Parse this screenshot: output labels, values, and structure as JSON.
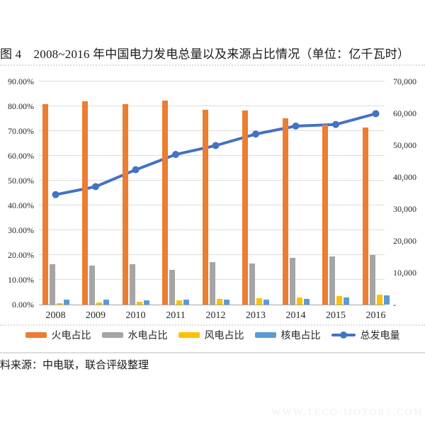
{
  "page": {
    "title": "图 4　2008~2016 年中国电力发电总量以及来源占比情况（单位：亿千瓦时）",
    "source_note": "料来源：中电联，联合评级整理",
    "watermark": "WWW.TECO-MOTORS.COM"
  },
  "chart_data": {
    "type": "bar",
    "subtype": "combo-bar-line",
    "title": "2008~2016 年中国电力发电总量以及来源占比情况（单位：亿千瓦时）",
    "categories": [
      "2008",
      "2009",
      "2010",
      "2011",
      "2012",
      "2013",
      "2014",
      "2015",
      "2016"
    ],
    "series": [
      {
        "key": "thermal",
        "name": "火电占比",
        "kind": "bar",
        "axis": "left",
        "color": "#ED7D31",
        "values": [
          81.0,
          81.9,
          80.8,
          82.4,
          78.7,
          78.4,
          75.2,
          72.5,
          71.3
        ]
      },
      {
        "key": "hydro",
        "name": "水电占比",
        "kind": "bar",
        "axis": "left",
        "color": "#A5A5A5",
        "values": [
          16.3,
          15.6,
          16.2,
          14.0,
          17.1,
          16.5,
          18.8,
          19.4,
          19.9
        ]
      },
      {
        "key": "wind",
        "name": "风电占比",
        "kind": "bar",
        "axis": "left",
        "color": "#FFC000",
        "values": [
          0.5,
          0.9,
          1.2,
          1.7,
          2.2,
          2.6,
          2.8,
          3.3,
          4.0
        ]
      },
      {
        "key": "nuclear",
        "name": "核电占比",
        "kind": "bar",
        "axis": "left",
        "color": "#5B9BD5",
        "values": [
          2.0,
          1.9,
          1.8,
          1.9,
          2.1,
          2.1,
          2.2,
          3.0,
          3.6
        ]
      },
      {
        "key": "total-generation",
        "name": "总发电量",
        "kind": "line",
        "axis": "right",
        "color": "#4472C4",
        "values": [
          34500,
          37000,
          42300,
          47100,
          49900,
          53500,
          56000,
          56500,
          59900
        ]
      }
    ],
    "left_axis": {
      "min": 0,
      "max": 90,
      "step": 10,
      "unit": "%",
      "labels": [
        "0.00%",
        "10.00%",
        "20.00%",
        "30.00%",
        "40.00%",
        "50.00%",
        "60.00%",
        "70.00%",
        "80.00%",
        "90.00%"
      ]
    },
    "right_axis": {
      "min": 0,
      "max": 70000,
      "step": 10000,
      "labels": [
        "-",
        "10,000",
        "20,000",
        "30,000",
        "40,000",
        "50,000",
        "60,000",
        "70,000"
      ]
    },
    "grid": true,
    "legend_position": "bottom"
  }
}
